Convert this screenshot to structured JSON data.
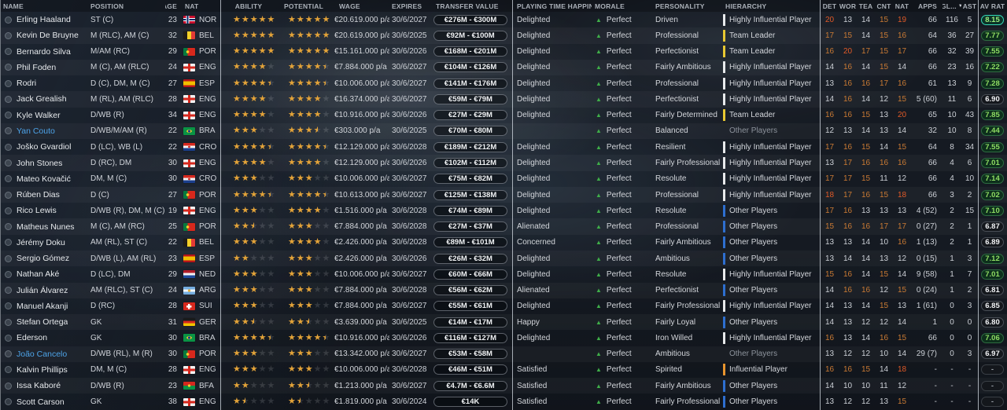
{
  "columns": {
    "name": "Name",
    "position": "Position",
    "age": "Age",
    "nat": "Nat",
    "ability": "Ability",
    "potential": "Potential",
    "wage": "Wage",
    "expires": "Expires",
    "transfer_value": "Transfer Value",
    "happiness": "Playing Time Happiness",
    "morale": "Morale",
    "personality": "Personality",
    "hierarchy": "Hierarchy",
    "det": "Det",
    "wor": "Wor",
    "tea": "Tea",
    "cnt": "Cnt",
    "nat_stat": "Nat",
    "apps": "Apps",
    "gl": "GL...",
    "ast": "Ast",
    "av_rat": "Av Rat"
  },
  "colors": {
    "star_gold": "#e3a339",
    "attr_high": "#e05a28",
    "attr_mid": "#c97a34",
    "attr_low": "#ccd0d6",
    "morale_positive": "#3fae49",
    "loan_name_blue": "#4da3e8",
    "rating_green": "#8fdd63",
    "tier_white": "#e8eaec",
    "tier_yellow": "#e8c832",
    "tier_blue": "#2e6fd0",
    "tier_orange": "#e8952e"
  },
  "players": [
    {
      "name": "Erling Haaland",
      "loan": false,
      "position": "ST (C)",
      "age": "23",
      "nat": "NOR",
      "ability": 5,
      "potential": 5,
      "wage": "€20.619.000 p/a",
      "expires": "30/6/2027",
      "value": "€276M - €300M",
      "happiness": "Delighted",
      "morale": "Perfect",
      "personality": "Driven",
      "hierarchy": "Highly Influential Player",
      "tier": "white",
      "det": 20,
      "wor": 13,
      "tea": 14,
      "cnt": 15,
      "nat_stat": 19,
      "apps": "66",
      "gl": "116",
      "ast": "5",
      "av_rat": "8.15"
    },
    {
      "name": "Kevin De Bruyne",
      "loan": false,
      "position": "M (RLC), AM (C)",
      "age": "32",
      "nat": "BEL",
      "ability": 5,
      "potential": 5,
      "wage": "€20.619.000 p/a",
      "expires": "30/6/2025",
      "value": "€92M - €100M",
      "happiness": "Delighted",
      "morale": "Perfect",
      "personality": "Professional",
      "hierarchy": "Team Leader",
      "tier": "yellow",
      "det": 17,
      "wor": 15,
      "tea": 14,
      "cnt": 15,
      "nat_stat": 16,
      "apps": "64",
      "gl": "36",
      "ast": "27",
      "av_rat": "7.77"
    },
    {
      "name": "Bernardo Silva",
      "loan": false,
      "position": "M/AM (RC)",
      "age": "29",
      "nat": "POR",
      "ability": 5,
      "potential": 5,
      "wage": "€15.161.000 p/a",
      "expires": "30/6/2026",
      "value": "€168M - €201M",
      "happiness": "Delighted",
      "morale": "Perfect",
      "personality": "Perfectionist",
      "hierarchy": "Team Leader",
      "tier": "yellow",
      "det": 16,
      "wor": 20,
      "tea": 17,
      "cnt": 15,
      "nat_stat": 17,
      "apps": "66",
      "gl": "32",
      "ast": "39",
      "av_rat": "7.55"
    },
    {
      "name": "Phil Foden",
      "loan": false,
      "position": "M (C), AM (RLC)",
      "age": "24",
      "nat": "ENG",
      "ability": 4,
      "potential": 4.5,
      "wage": "€7.884.000 p/a",
      "expires": "30/6/2027",
      "value": "€104M - €126M",
      "happiness": "Delighted",
      "morale": "Perfect",
      "personality": "Fairly Ambitious",
      "hierarchy": "Highly Influential Player",
      "tier": "white",
      "det": 14,
      "wor": 16,
      "tea": 14,
      "cnt": 15,
      "nat_stat": 14,
      "apps": "66",
      "gl": "23",
      "ast": "16",
      "av_rat": "7.22"
    },
    {
      "name": "Rodri",
      "loan": false,
      "position": "D (C), DM, M (C)",
      "age": "27",
      "nat": "ESP",
      "ability": 4.5,
      "potential": 4.5,
      "wage": "€10.006.000 p/a",
      "expires": "30/6/2027",
      "value": "€141M - €176M",
      "happiness": "Delighted",
      "morale": "Perfect",
      "personality": "Professional",
      "hierarchy": "Highly Influential Player",
      "tier": "white",
      "det": 13,
      "wor": 16,
      "tea": 16,
      "cnt": 17,
      "nat_stat": 16,
      "apps": "61",
      "gl": "13",
      "ast": "9",
      "av_rat": "7.28"
    },
    {
      "name": "Jack Grealish",
      "loan": false,
      "position": "M (RL), AM (RLC)",
      "age": "28",
      "nat": "ENG",
      "ability": 4,
      "potential": 4,
      "wage": "€16.374.000 p/a",
      "expires": "30/6/2027",
      "value": "€59M - €79M",
      "happiness": "Delighted",
      "morale": "Perfect",
      "personality": "Perfectionist",
      "hierarchy": "Highly Influential Player",
      "tier": "white",
      "det": 14,
      "wor": 16,
      "tea": 14,
      "cnt": 12,
      "nat_stat": 15,
      "apps": "5 (60)",
      "gl": "11",
      "ast": "6",
      "av_rat": "6.90"
    },
    {
      "name": "Kyle Walker",
      "loan": false,
      "position": "D/WB (R)",
      "age": "34",
      "nat": "ENG",
      "ability": 4,
      "potential": 4,
      "wage": "€10.916.000 p/a",
      "expires": "30/6/2026",
      "value": "€27M - €29M",
      "happiness": "Delighted",
      "morale": "Perfect",
      "personality": "Fairly Determined",
      "hierarchy": "Team Leader",
      "tier": "yellow",
      "det": 16,
      "wor": 16,
      "tea": 15,
      "cnt": 13,
      "nat_stat": 20,
      "apps": "65",
      "gl": "10",
      "ast": "43",
      "av_rat": "7.85"
    },
    {
      "name": "Yan Couto",
      "loan": true,
      "position": "D/WB/M/AM (R)",
      "age": "22",
      "nat": "BRA",
      "ability": 3,
      "potential": 3.5,
      "wage": "€303.000 p/a",
      "expires": "30/6/2025",
      "value": "€70M - €80M",
      "happiness": "",
      "morale": "Perfect",
      "personality": "Balanced",
      "hierarchy": "Other Players",
      "tier": "none",
      "det": 12,
      "wor": 13,
      "tea": 14,
      "cnt": 13,
      "nat_stat": 14,
      "apps": "32",
      "gl": "10",
      "ast": "8",
      "av_rat": "7.44"
    },
    {
      "name": "Joško Gvardiol",
      "loan": false,
      "position": "D (LC), WB (L)",
      "age": "22",
      "nat": "CRO",
      "ability": 4.5,
      "potential": 4.5,
      "wage": "€12.129.000 p/a",
      "expires": "30/6/2028",
      "value": "€189M - €212M",
      "happiness": "Delighted",
      "morale": "Perfect",
      "personality": "Resilient",
      "hierarchy": "Highly Influential Player",
      "tier": "white",
      "det": 17,
      "wor": 16,
      "tea": 15,
      "cnt": 14,
      "nat_stat": 15,
      "apps": "64",
      "gl": "8",
      "ast": "34",
      "av_rat": "7.55"
    },
    {
      "name": "John Stones",
      "loan": false,
      "position": "D (RC), DM",
      "age": "30",
      "nat": "ENG",
      "ability": 4,
      "potential": 4,
      "wage": "€12.129.000 p/a",
      "expires": "30/6/2026",
      "value": "€102M - €112M",
      "happiness": "Delighted",
      "morale": "Perfect",
      "personality": "Fairly Professional",
      "hierarchy": "Highly Influential Player",
      "tier": "white",
      "det": 13,
      "wor": 17,
      "tea": 16,
      "cnt": 16,
      "nat_stat": 16,
      "apps": "66",
      "gl": "4",
      "ast": "6",
      "av_rat": "7.01"
    },
    {
      "name": "Mateo Kovačić",
      "loan": false,
      "position": "DM, M (C)",
      "age": "30",
      "nat": "CRO",
      "ability": 3,
      "potential": 3,
      "wage": "€10.006.000 p/a",
      "expires": "30/6/2027",
      "value": "€75M - €82M",
      "happiness": "Delighted",
      "morale": "Perfect",
      "personality": "Resolute",
      "hierarchy": "Highly Influential Player",
      "tier": "white",
      "det": 17,
      "wor": 17,
      "tea": 15,
      "cnt": 11,
      "nat_stat": 12,
      "apps": "66",
      "gl": "4",
      "ast": "10",
      "av_rat": "7.14"
    },
    {
      "name": "Rúben Dias",
      "loan": false,
      "position": "D (C)",
      "age": "27",
      "nat": "POR",
      "ability": 4.5,
      "potential": 4.5,
      "wage": "€10.613.000 p/a",
      "expires": "30/6/2027",
      "value": "€125M - €138M",
      "happiness": "Delighted",
      "morale": "Perfect",
      "personality": "Professional",
      "hierarchy": "Highly Influential Player",
      "tier": "white",
      "det": 18,
      "wor": 17,
      "tea": 16,
      "cnt": 15,
      "nat_stat": 18,
      "apps": "66",
      "gl": "3",
      "ast": "2",
      "av_rat": "7.02"
    },
    {
      "name": "Rico Lewis",
      "loan": false,
      "position": "D/WB (R), DM, M (C)",
      "age": "19",
      "nat": "ENG",
      "ability": 3,
      "potential": 4,
      "wage": "€1.516.000 p/a",
      "expires": "30/6/2028",
      "value": "€74M - €89M",
      "happiness": "Delighted",
      "morale": "Perfect",
      "personality": "Resolute",
      "hierarchy": "Other Players",
      "tier": "blue",
      "det": 17,
      "wor": 16,
      "tea": 13,
      "cnt": 13,
      "nat_stat": 13,
      "apps": "4 (52)",
      "gl": "2",
      "ast": "15",
      "av_rat": "7.10"
    },
    {
      "name": "Matheus Nunes",
      "loan": false,
      "position": "M (C), AM (RC)",
      "age": "25",
      "nat": "POR",
      "ability": 2.5,
      "potential": 3,
      "wage": "€7.884.000 p/a",
      "expires": "30/6/2028",
      "value": "€27M - €37M",
      "happiness": "Alienated",
      "morale": "Perfect",
      "personality": "Professional",
      "hierarchy": "Other Players",
      "tier": "blue",
      "det": 15,
      "wor": 16,
      "tea": 16,
      "cnt": 17,
      "nat_stat": 17,
      "apps": "0 (27)",
      "gl": "2",
      "ast": "1",
      "av_rat": "6.87"
    },
    {
      "name": "Jérémy Doku",
      "loan": false,
      "position": "AM (RL), ST (C)",
      "age": "22",
      "nat": "BEL",
      "ability": 3,
      "potential": 4,
      "wage": "€2.426.000 p/a",
      "expires": "30/6/2028",
      "value": "€89M - €101M",
      "happiness": "Concerned",
      "morale": "Perfect",
      "personality": "Fairly Ambitious",
      "hierarchy": "Other Players",
      "tier": "blue",
      "det": 13,
      "wor": 13,
      "tea": 14,
      "cnt": 10,
      "nat_stat": 16,
      "apps": "1 (13)",
      "gl": "2",
      "ast": "1",
      "av_rat": "6.89"
    },
    {
      "name": "Sergio Gómez",
      "loan": false,
      "position": "D/WB (L), AM (RL)",
      "age": "23",
      "nat": "ESP",
      "ability": 2,
      "potential": 3,
      "wage": "€2.426.000 p/a",
      "expires": "30/6/2026",
      "value": "€26M - €32M",
      "happiness": "Delighted",
      "morale": "Perfect",
      "personality": "Ambitious",
      "hierarchy": "Other Players",
      "tier": "blue",
      "det": 13,
      "wor": 14,
      "tea": 14,
      "cnt": 13,
      "nat_stat": 12,
      "apps": "0 (15)",
      "gl": "1",
      "ast": "3",
      "av_rat": "7.12"
    },
    {
      "name": "Nathan Aké",
      "loan": false,
      "position": "D (LC), DM",
      "age": "29",
      "nat": "NED",
      "ability": 3,
      "potential": 3,
      "wage": "€10.006.000 p/a",
      "expires": "30/6/2027",
      "value": "€60M - €66M",
      "happiness": "Delighted",
      "morale": "Perfect",
      "personality": "Resolute",
      "hierarchy": "Highly Influential Player",
      "tier": "white",
      "det": 15,
      "wor": 16,
      "tea": 14,
      "cnt": 15,
      "nat_stat": 14,
      "apps": "9 (58)",
      "gl": "1",
      "ast": "7",
      "av_rat": "7.01"
    },
    {
      "name": "Julián Álvarez",
      "loan": false,
      "position": "AM (RLC), ST (C)",
      "age": "24",
      "nat": "ARG",
      "ability": 3,
      "potential": 3,
      "wage": "€7.884.000 p/a",
      "expires": "30/6/2028",
      "value": "€56M - €62M",
      "happiness": "Alienated",
      "morale": "Perfect",
      "personality": "Perfectionist",
      "hierarchy": "Other Players",
      "tier": "blue",
      "det": 14,
      "wor": 16,
      "tea": 16,
      "cnt": 12,
      "nat_stat": 15,
      "apps": "0 (24)",
      "gl": "1",
      "ast": "2",
      "av_rat": "6.81"
    },
    {
      "name": "Manuel Akanji",
      "loan": false,
      "position": "D (RC)",
      "age": "28",
      "nat": "SUI",
      "ability": 3,
      "potential": 3,
      "wage": "€7.884.000 p/a",
      "expires": "30/6/2027",
      "value": "€55M - €61M",
      "happiness": "Delighted",
      "morale": "Perfect",
      "personality": "Fairly Professional",
      "hierarchy": "Highly Influential Player",
      "tier": "white",
      "det": 14,
      "wor": 13,
      "tea": 14,
      "cnt": 15,
      "nat_stat": 13,
      "apps": "1 (61)",
      "gl": "0",
      "ast": "3",
      "av_rat": "6.85"
    },
    {
      "name": "Stefan Ortega",
      "loan": false,
      "position": "GK",
      "age": "31",
      "nat": "GER",
      "ability": 2.5,
      "potential": 2.5,
      "wage": "€3.639.000 p/a",
      "expires": "30/6/2025",
      "value": "€14M - €17M",
      "happiness": "Happy",
      "morale": "Perfect",
      "personality": "Fairly Loyal",
      "hierarchy": "Other Players",
      "tier": "blue",
      "det": 14,
      "wor": 13,
      "tea": 12,
      "cnt": 12,
      "nat_stat": 14,
      "apps": "1",
      "gl": "0",
      "ast": "0",
      "av_rat": "6.80"
    },
    {
      "name": "Ederson",
      "loan": false,
      "position": "GK",
      "age": "30",
      "nat": "BRA",
      "ability": 4.5,
      "potential": 4.5,
      "wage": "€10.916.000 p/a",
      "expires": "30/6/2026",
      "value": "€116M - €127M",
      "happiness": "Delighted",
      "morale": "Perfect",
      "personality": "Iron Willed",
      "hierarchy": "Highly Influential Player",
      "tier": "white",
      "det": 16,
      "wor": 13,
      "tea": 14,
      "cnt": 16,
      "nat_stat": 15,
      "apps": "66",
      "gl": "0",
      "ast": "0",
      "av_rat": "7.06"
    },
    {
      "name": "João Cancelo",
      "loan": true,
      "position": "D/WB (RL), M (R)",
      "age": "30",
      "nat": "POR",
      "ability": 3,
      "potential": 3,
      "wage": "€13.342.000 p/a",
      "expires": "30/6/2027",
      "value": "€53M - €58M",
      "happiness": "",
      "morale": "Perfect",
      "personality": "Ambitious",
      "hierarchy": "Other Players",
      "tier": "none",
      "det": 13,
      "wor": 12,
      "tea": 12,
      "cnt": 10,
      "nat_stat": 14,
      "apps": "29 (7)",
      "gl": "0",
      "ast": "3",
      "av_rat": "6.97"
    },
    {
      "name": "Kalvin Phillips",
      "loan": false,
      "position": "DM, M (C)",
      "age": "28",
      "nat": "ENG",
      "ability": 3,
      "potential": 3,
      "wage": "€10.006.000 p/a",
      "expires": "30/6/2028",
      "value": "€46M - €51M",
      "happiness": "Satisfied",
      "morale": "Perfect",
      "personality": "Spirited",
      "hierarchy": "Influential Player",
      "tier": "orange",
      "det": 16,
      "wor": 16,
      "tea": 15,
      "cnt": 14,
      "nat_stat": 18,
      "apps": "-",
      "gl": "-",
      "ast": "-",
      "av_rat": "-"
    },
    {
      "name": "Issa Kaboré",
      "loan": false,
      "position": "D/WB (R)",
      "age": "23",
      "nat": "BFA",
      "ability": 2,
      "potential": 2.5,
      "wage": "€1.213.000 p/a",
      "expires": "30/6/2027",
      "value": "€4.7M - €6.6M",
      "happiness": "Satisfied",
      "morale": "Perfect",
      "personality": "Fairly Ambitious",
      "hierarchy": "Other Players",
      "tier": "blue",
      "det": 14,
      "wor": 10,
      "tea": 10,
      "cnt": 11,
      "nat_stat": 12,
      "apps": "-",
      "gl": "-",
      "ast": "-",
      "av_rat": "-"
    },
    {
      "name": "Scott Carson",
      "loan": false,
      "position": "GK",
      "age": "38",
      "nat": "ENG",
      "ability": 1.5,
      "potential": 1.5,
      "wage": "€1.819.000 p/a",
      "expires": "30/6/2024",
      "value": "€14K",
      "happiness": "Satisfied",
      "morale": "Perfect",
      "personality": "Fairly Professional",
      "hierarchy": "Other Players",
      "tier": "blue",
      "det": 13,
      "wor": 12,
      "tea": 12,
      "cnt": 13,
      "nat_stat": 15,
      "apps": "-",
      "gl": "-",
      "ast": "-",
      "av_rat": "-"
    }
  ]
}
